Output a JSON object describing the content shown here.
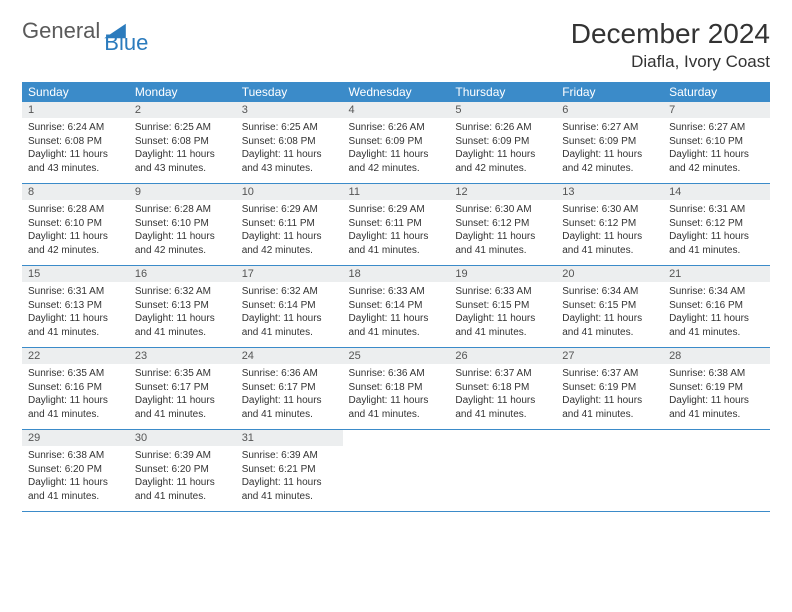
{
  "logo": {
    "text1": "General",
    "text2": "Blue"
  },
  "title": "December 2024",
  "location": "Diafla, Ivory Coast",
  "colors": {
    "header_bg": "#3b8bc9",
    "header_text": "#ffffff",
    "daynum_bg": "#eceeef",
    "border": "#3b8bc9",
    "logo_gray": "#5a5a5a",
    "logo_blue": "#2b7bbd"
  },
  "day_headers": [
    "Sunday",
    "Monday",
    "Tuesday",
    "Wednesday",
    "Thursday",
    "Friday",
    "Saturday"
  ],
  "weeks": [
    [
      {
        "n": "1",
        "sr": "6:24 AM",
        "ss": "6:08 PM",
        "dl": "11 hours and 43 minutes."
      },
      {
        "n": "2",
        "sr": "6:25 AM",
        "ss": "6:08 PM",
        "dl": "11 hours and 43 minutes."
      },
      {
        "n": "3",
        "sr": "6:25 AM",
        "ss": "6:08 PM",
        "dl": "11 hours and 43 minutes."
      },
      {
        "n": "4",
        "sr": "6:26 AM",
        "ss": "6:09 PM",
        "dl": "11 hours and 42 minutes."
      },
      {
        "n": "5",
        "sr": "6:26 AM",
        "ss": "6:09 PM",
        "dl": "11 hours and 42 minutes."
      },
      {
        "n": "6",
        "sr": "6:27 AM",
        "ss": "6:09 PM",
        "dl": "11 hours and 42 minutes."
      },
      {
        "n": "7",
        "sr": "6:27 AM",
        "ss": "6:10 PM",
        "dl": "11 hours and 42 minutes."
      }
    ],
    [
      {
        "n": "8",
        "sr": "6:28 AM",
        "ss": "6:10 PM",
        "dl": "11 hours and 42 minutes."
      },
      {
        "n": "9",
        "sr": "6:28 AM",
        "ss": "6:10 PM",
        "dl": "11 hours and 42 minutes."
      },
      {
        "n": "10",
        "sr": "6:29 AM",
        "ss": "6:11 PM",
        "dl": "11 hours and 42 minutes."
      },
      {
        "n": "11",
        "sr": "6:29 AM",
        "ss": "6:11 PM",
        "dl": "11 hours and 41 minutes."
      },
      {
        "n": "12",
        "sr": "6:30 AM",
        "ss": "6:12 PM",
        "dl": "11 hours and 41 minutes."
      },
      {
        "n": "13",
        "sr": "6:30 AM",
        "ss": "6:12 PM",
        "dl": "11 hours and 41 minutes."
      },
      {
        "n": "14",
        "sr": "6:31 AM",
        "ss": "6:12 PM",
        "dl": "11 hours and 41 minutes."
      }
    ],
    [
      {
        "n": "15",
        "sr": "6:31 AM",
        "ss": "6:13 PM",
        "dl": "11 hours and 41 minutes."
      },
      {
        "n": "16",
        "sr": "6:32 AM",
        "ss": "6:13 PM",
        "dl": "11 hours and 41 minutes."
      },
      {
        "n": "17",
        "sr": "6:32 AM",
        "ss": "6:14 PM",
        "dl": "11 hours and 41 minutes."
      },
      {
        "n": "18",
        "sr": "6:33 AM",
        "ss": "6:14 PM",
        "dl": "11 hours and 41 minutes."
      },
      {
        "n": "19",
        "sr": "6:33 AM",
        "ss": "6:15 PM",
        "dl": "11 hours and 41 minutes."
      },
      {
        "n": "20",
        "sr": "6:34 AM",
        "ss": "6:15 PM",
        "dl": "11 hours and 41 minutes."
      },
      {
        "n": "21",
        "sr": "6:34 AM",
        "ss": "6:16 PM",
        "dl": "11 hours and 41 minutes."
      }
    ],
    [
      {
        "n": "22",
        "sr": "6:35 AM",
        "ss": "6:16 PM",
        "dl": "11 hours and 41 minutes."
      },
      {
        "n": "23",
        "sr": "6:35 AM",
        "ss": "6:17 PM",
        "dl": "11 hours and 41 minutes."
      },
      {
        "n": "24",
        "sr": "6:36 AM",
        "ss": "6:17 PM",
        "dl": "11 hours and 41 minutes."
      },
      {
        "n": "25",
        "sr": "6:36 AM",
        "ss": "6:18 PM",
        "dl": "11 hours and 41 minutes."
      },
      {
        "n": "26",
        "sr": "6:37 AM",
        "ss": "6:18 PM",
        "dl": "11 hours and 41 minutes."
      },
      {
        "n": "27",
        "sr": "6:37 AM",
        "ss": "6:19 PM",
        "dl": "11 hours and 41 minutes."
      },
      {
        "n": "28",
        "sr": "6:38 AM",
        "ss": "6:19 PM",
        "dl": "11 hours and 41 minutes."
      }
    ],
    [
      {
        "n": "29",
        "sr": "6:38 AM",
        "ss": "6:20 PM",
        "dl": "11 hours and 41 minutes."
      },
      {
        "n": "30",
        "sr": "6:39 AM",
        "ss": "6:20 PM",
        "dl": "11 hours and 41 minutes."
      },
      {
        "n": "31",
        "sr": "6:39 AM",
        "ss": "6:21 PM",
        "dl": "11 hours and 41 minutes."
      },
      null,
      null,
      null,
      null
    ]
  ],
  "labels": {
    "sunrise": "Sunrise:",
    "sunset": "Sunset:",
    "daylight": "Daylight:"
  }
}
